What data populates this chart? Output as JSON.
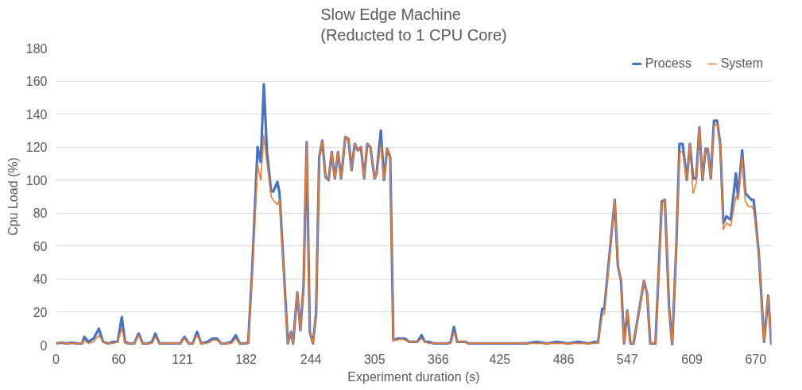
{
  "chart_data": {
    "type": "line",
    "title": "Slow Edge Machine\n(Reducted to 1 CPU Core)",
    "xlabel": "Experiment duration (s)",
    "ylabel": "Cpu Load (%)",
    "x": [
      0,
      5,
      10,
      15,
      20,
      25,
      27,
      31,
      36,
      41,
      45,
      50,
      55,
      59,
      63,
      66,
      70,
      75,
      79,
      83,
      88,
      92,
      95,
      99,
      105,
      110,
      115,
      119,
      123,
      127,
      131,
      135,
      139,
      145,
      150,
      154,
      158,
      163,
      168,
      172,
      176,
      181,
      184,
      188,
      193,
      196,
      199,
      202,
      206,
      208,
      212,
      214,
      222,
      225,
      227,
      231,
      234,
      237,
      240,
      243,
      246,
      249,
      252,
      255,
      258,
      261,
      264,
      267,
      270,
      273,
      277,
      280,
      283,
      286,
      289,
      292,
      295,
      298,
      301,
      305,
      307,
      311,
      314,
      317,
      320,
      323,
      327,
      331,
      334,
      338,
      342,
      346,
      350,
      353,
      357,
      362,
      366,
      370,
      375,
      378,
      381,
      384,
      388,
      392,
      395,
      400,
      410,
      420,
      430,
      440,
      450,
      460,
      470,
      480,
      490,
      500,
      510,
      516,
      519,
      523,
      525,
      535,
      538,
      541,
      544,
      547,
      550,
      553,
      563,
      566,
      569,
      574,
      580,
      583,
      587,
      590,
      594,
      597,
      600,
      604,
      607,
      610,
      613,
      616,
      619,
      622,
      624,
      627,
      630,
      633,
      636,
      639,
      642,
      646,
      651,
      653,
      657,
      660,
      663,
      666,
      668,
      673,
      678,
      682,
      685
    ],
    "series": [
      {
        "name": "Process",
        "color": "#4472c4",
        "values": [
          1,
          1.5,
          1,
          1.5,
          1,
          1,
          5,
          2,
          4,
          10,
          2,
          1,
          2,
          2,
          17,
          2,
          1,
          1,
          7,
          1,
          1,
          2,
          7,
          1,
          1,
          1,
          1,
          1,
          5,
          1,
          1,
          8,
          1,
          2,
          4,
          4,
          1,
          1,
          2,
          6,
          1,
          1,
          1.4,
          48,
          120,
          111,
          158,
          117,
          93,
          93,
          99,
          92,
          1,
          8,
          1,
          32,
          9,
          36,
          123,
          8,
          1,
          19,
          114,
          124,
          102,
          100,
          117,
          101,
          117,
          101,
          126,
          125,
          106,
          122,
          118,
          120,
          101,
          122,
          120,
          101,
          104,
          130,
          100,
          119,
          114,
          3,
          4,
          4,
          4,
          2,
          2,
          2,
          6,
          2,
          2,
          1,
          1,
          1,
          1,
          2,
          11,
          2,
          2,
          2,
          1,
          1,
          1,
          1,
          1,
          1,
          1,
          2,
          1,
          2,
          1,
          2,
          1,
          2,
          1.5,
          22,
          22,
          88,
          48,
          39,
          1,
          21,
          1,
          1,
          39,
          31,
          1,
          1,
          87,
          88,
          23,
          0,
          61,
          122,
          122,
          100,
          122,
          101,
          101,
          132,
          100,
          119,
          119,
          101,
          136,
          136,
          122,
          74,
          78,
          76,
          104,
          90,
          118,
          92,
          90,
          88,
          88,
          55,
          2,
          30,
          0
        ]
      },
      {
        "name": "System",
        "color": "#ed7d31",
        "values": [
          1,
          1.5,
          1,
          1,
          1,
          1,
          3,
          1,
          2,
          6,
          2,
          1,
          1,
          2,
          10,
          1,
          1,
          1,
          6,
          1,
          1,
          1,
          5,
          1,
          1,
          1,
          1,
          1,
          4,
          1,
          1,
          6,
          1,
          1,
          3,
          3,
          1,
          1,
          1,
          4,
          1,
          1,
          1.4,
          45,
          109,
          100,
          127,
          110,
          90,
          88,
          85,
          88,
          1,
          8,
          1,
          32,
          9,
          36,
          123,
          8,
          1,
          19,
          114,
          124,
          102,
          100,
          117,
          101,
          117,
          101,
          126,
          125,
          106,
          122,
          118,
          120,
          101,
          122,
          120,
          101,
          104,
          122,
          100,
          119,
          114,
          3,
          3,
          4,
          3,
          2,
          2,
          2,
          4,
          2,
          1,
          1,
          1,
          1,
          1,
          1,
          8,
          2,
          2,
          2,
          1,
          1,
          1,
          1,
          1,
          1,
          1,
          1,
          1,
          1,
          1,
          1,
          1,
          1,
          1.5,
          18,
          19,
          88,
          48,
          39,
          1,
          21,
          1,
          1,
          39,
          31,
          1,
          1,
          86,
          88,
          23,
          0,
          61,
          117,
          117,
          100,
          122,
          92,
          98,
          132,
          100,
          119,
          119,
          101,
          133,
          134,
          122,
          70,
          74,
          72,
          90,
          88,
          114,
          87,
          84,
          84,
          82,
          55,
          2,
          30,
          0
        ]
      }
    ],
    "xlim": [
      0,
      685
    ],
    "xticks": [
      0,
      60,
      121,
      182,
      244,
      305,
      366,
      425,
      486,
      547,
      609,
      670
    ],
    "ylim": [
      0,
      180
    ],
    "yticks": [
      0,
      20,
      40,
      60,
      80,
      100,
      120,
      140,
      160,
      180
    ],
    "grid": "y",
    "legend": "top right",
    "marker": "none",
    "line_style": "solid"
  }
}
